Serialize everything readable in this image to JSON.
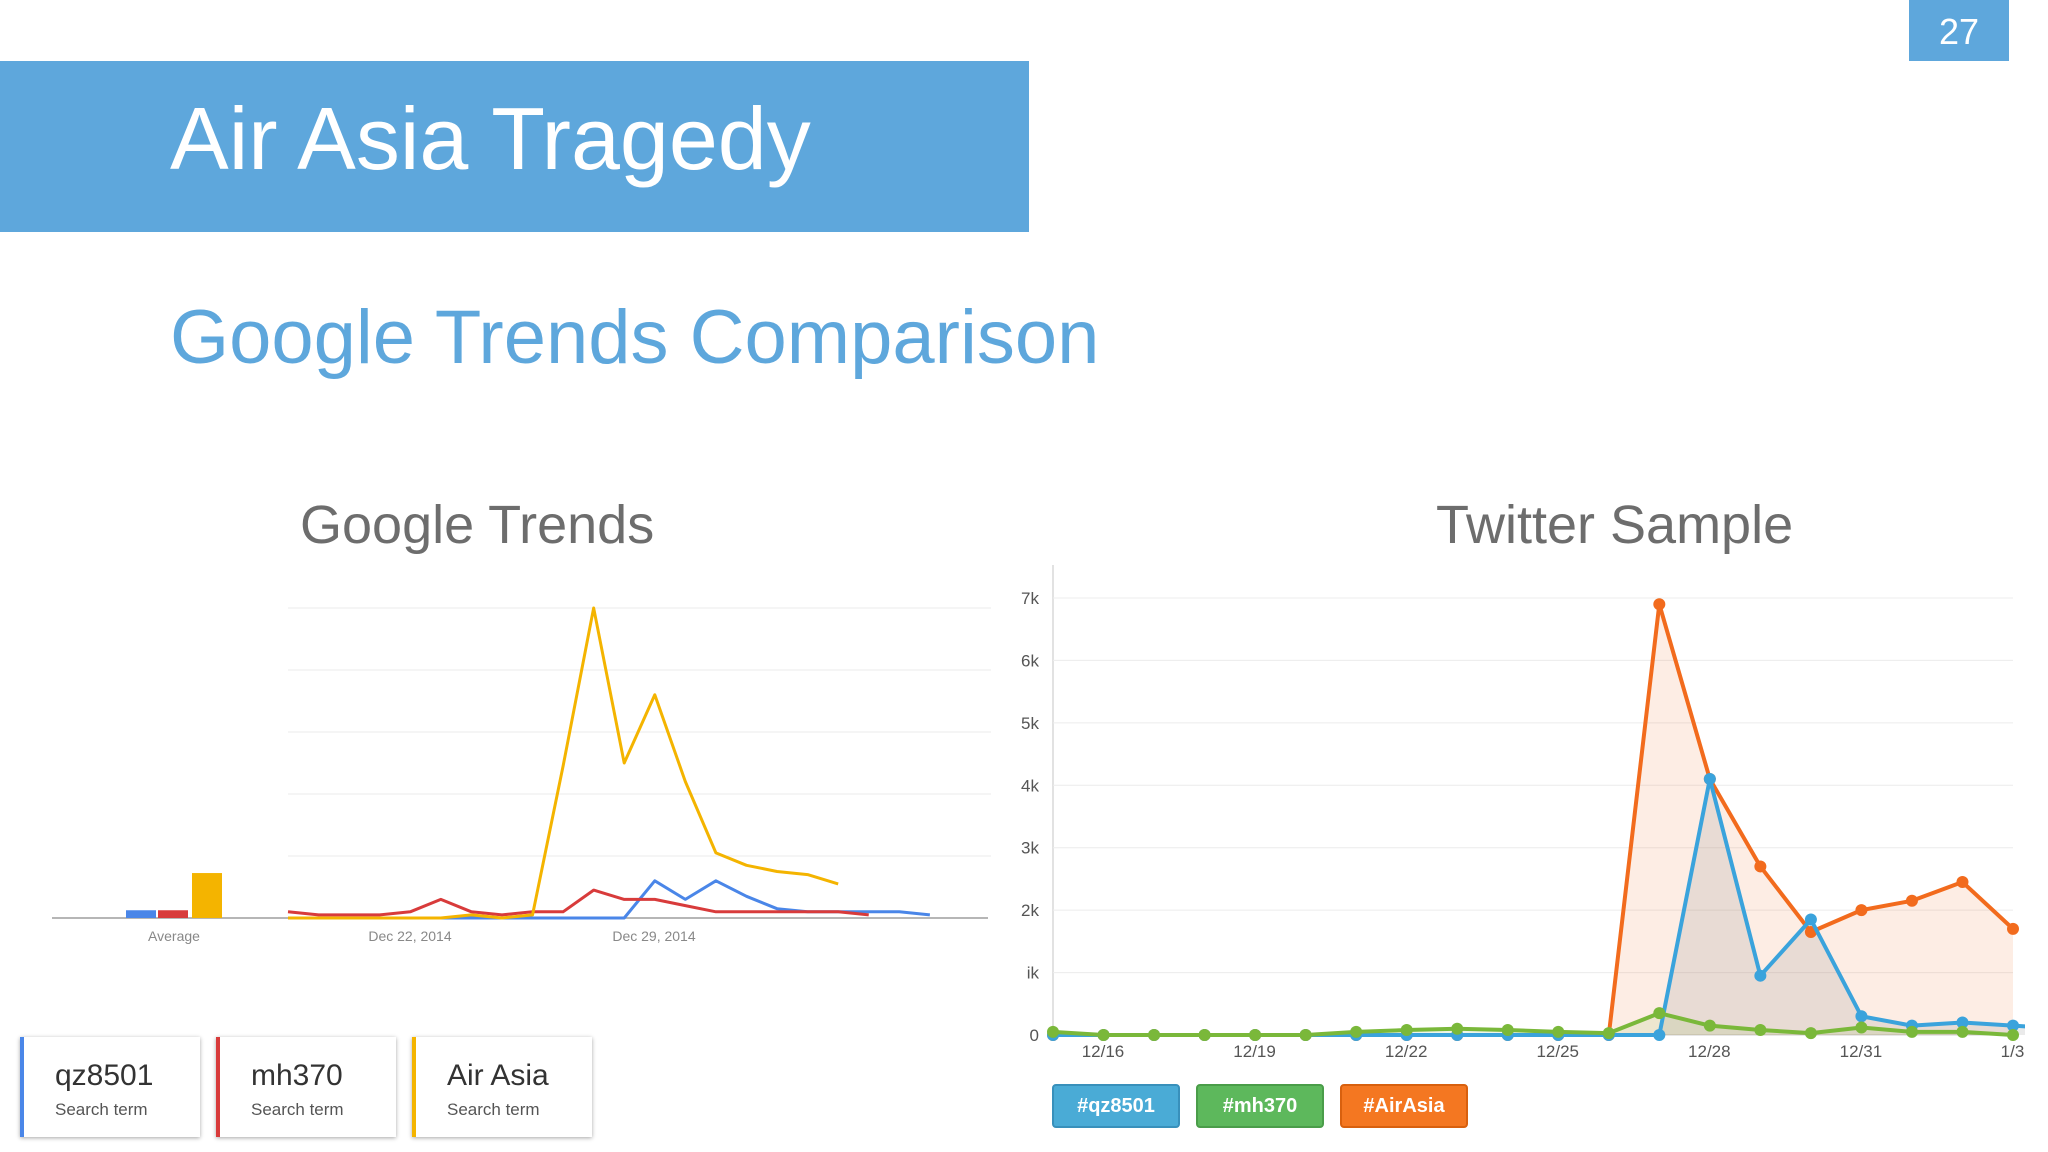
{
  "page_number": "27",
  "title": "Air Asia Tragedy",
  "subtitle": "Google Trends Comparison",
  "colors": {
    "accent": "#5ea7dc",
    "gt_blue": "#4a86e8",
    "gt_red": "#d83b3b",
    "gt_yellow": "#f4b400",
    "tw_blue": "#3aa3dc",
    "tw_green": "#7ab83a",
    "tw_orange": "#f26b1d"
  },
  "terms": [
    {
      "name": "qz8501",
      "kind": "Search term",
      "color": "#4a86e8"
    },
    {
      "name": "mh370",
      "kind": "Search term",
      "color": "#d83b3b"
    },
    {
      "name": "Air Asia",
      "kind": "Search term",
      "color": "#f4b400"
    }
  ],
  "chart_data": [
    {
      "type": "line",
      "title": "Google Trends",
      "x_tick_labels": [
        "Average",
        "Dec 22, 2014",
        "Dec 29, 2014"
      ],
      "ylim": [
        0,
        100
      ],
      "grid": true,
      "average_bars": [
        {
          "series": "qz8501",
          "value": 2.5
        },
        {
          "series": "mh370",
          "value": 2.5
        },
        {
          "series": "Air Asia",
          "value": 14.5
        }
      ],
      "series": [
        {
          "name": "qz8501",
          "color": "#4a86e8",
          "values": [
            0,
            0,
            0,
            0,
            0,
            0,
            0,
            0,
            0,
            0,
            0,
            0,
            12,
            6,
            12,
            7,
            3,
            2,
            2,
            2,
            2,
            1
          ]
        },
        {
          "name": "mh370",
          "color": "#d83b3b",
          "values": [
            2,
            1,
            1,
            1,
            2,
            6,
            2,
            1,
            2,
            2,
            9,
            6,
            6,
            4,
            2,
            2,
            2,
            2,
            2,
            1
          ]
        },
        {
          "name": "Air Asia",
          "color": "#f4b400",
          "values": [
            0,
            0,
            0,
            0,
            0,
            0,
            1,
            0,
            1,
            49,
            100,
            50,
            72,
            44,
            21,
            17,
            15,
            14,
            11
          ]
        }
      ]
    },
    {
      "type": "line",
      "title": "Twitter Sample",
      "x_tick_labels": [
        "12/16",
        "12/19",
        "12/22",
        "12/25",
        "12/28",
        "12/31",
        "1/3"
      ],
      "y_tick_labels": [
        "0",
        "ik",
        "2k",
        "3k",
        "4k",
        "5k",
        "6k",
        "7k"
      ],
      "ylim": [
        0,
        7
      ],
      "grid": true,
      "legend": "bottom",
      "series": [
        {
          "name": "#qz8501",
          "color": "#3aa3dc",
          "values": [
            0,
            0,
            0,
            0,
            0,
            0,
            0,
            0,
            0,
            0,
            0,
            0,
            0,
            4.1,
            0.95,
            1.85,
            0.3,
            0.15,
            0.2,
            0.15,
            0.1
          ]
        },
        {
          "name": "#mh370",
          "color": "#7ab83a",
          "values": [
            0.05,
            0,
            0,
            0,
            0,
            0,
            0.05,
            0.08,
            0.1,
            0.08,
            0.05,
            0.03,
            0.35,
            0.15,
            0.08,
            0.03,
            0.12,
            0.05,
            0.05,
            0
          ]
        },
        {
          "name": "#AirAsia",
          "color": "#f26b1d",
          "values": [
            0,
            0,
            0,
            0,
            0,
            0,
            0,
            0,
            0,
            0,
            0,
            0,
            6.9,
            4.1,
            2.7,
            1.65,
            2,
            2.15,
            2.45,
            1.7
          ]
        }
      ]
    }
  ]
}
